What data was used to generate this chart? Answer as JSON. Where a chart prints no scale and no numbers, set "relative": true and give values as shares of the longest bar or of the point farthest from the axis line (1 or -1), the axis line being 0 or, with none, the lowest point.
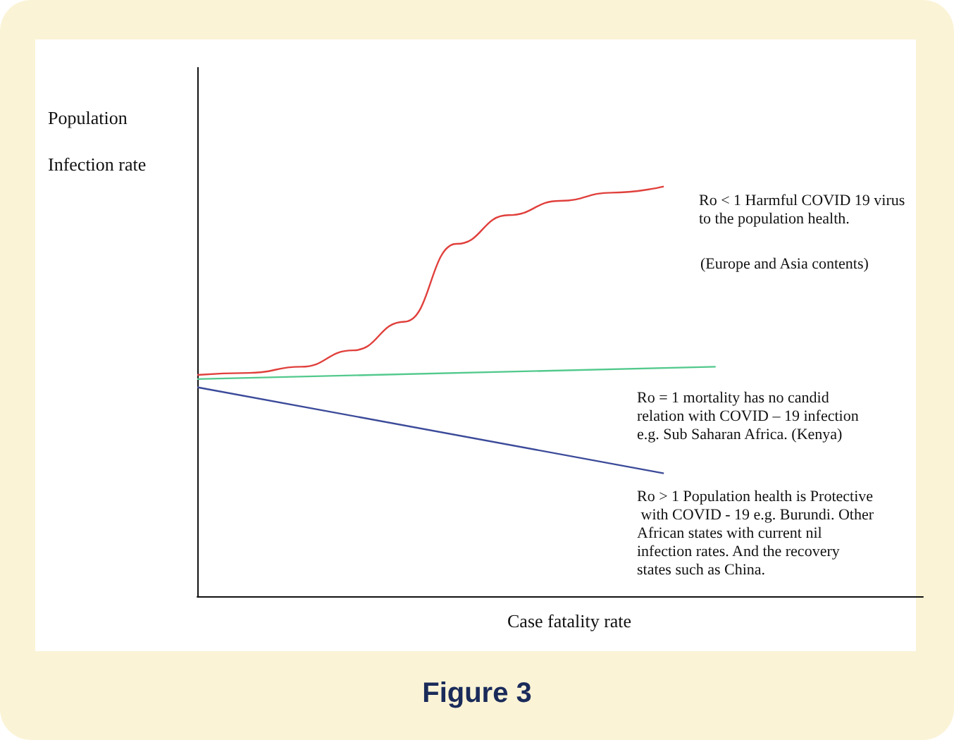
{
  "chart_data": {
    "type": "line",
    "title": "Figure 3",
    "xlabel": "Case fatality rate",
    "ylabel": "Population Infection rate",
    "relative": true,
    "marker": "none",
    "line_style": "solid",
    "categories": [
      null,
      null,
      null,
      null,
      null,
      null,
      null,
      null,
      null,
      null,
      null,
      null,
      null,
      null,
      null
    ],
    "series": [
      {
        "color": "#e0403c",
        "values": [
          0.54,
          0.545,
          0.56,
          0.6,
          0.67,
          0.86,
          0.93,
          0.965,
          0.985,
          1.0,
          null,
          null,
          null,
          null,
          null
        ]
      },
      {
        "color": "#52c98c",
        "values": [
          0.53,
          null,
          null,
          null,
          null,
          null,
          null,
          null,
          null,
          null,
          0.56,
          null,
          null,
          null,
          null
        ]
      },
      {
        "color": "#3b4a99",
        "values": [
          0.51,
          null,
          null,
          null,
          null,
          null,
          null,
          null,
          null,
          0.3,
          null,
          null,
          null,
          null,
          null
        ]
      }
    ],
    "annotations": [
      "Ro < 1 Harmful COVID 19 virus to the population health.",
      "(Europe and Asia contents)",
      "Ro = 1 mortality has no candid relation with COVID – 19 infection e.g. Sub Saharan Africa. (Kenya)",
      "Ro > 1 Population health is Protective with COVID - 19 e.g. Burundi. Other African states with current nil infection rates. And the recovery states such as China."
    ]
  }
}
